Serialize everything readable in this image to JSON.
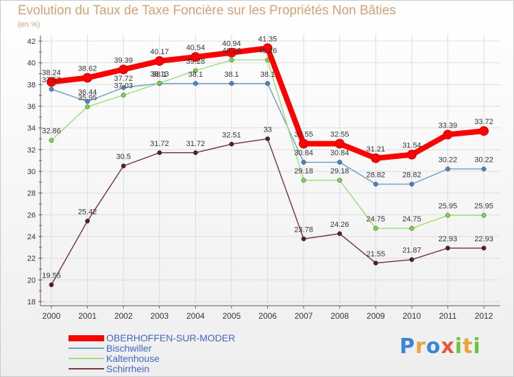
{
  "title": "Evolution du Taux de Taxe Foncière sur les Propriétés Non Bâties",
  "unit_label": "(en %)",
  "logo_text": "Proxiti",
  "colors": {
    "title": "#d2a176",
    "legend_text": "#3d68c6",
    "grid": "#dcdcdc",
    "axis": "#555555"
  },
  "chart_data": {
    "type": "line",
    "title": "Evolution du Taux de Taxe Foncière sur les Propriétés Non Bâties",
    "ylabel": "(en %)",
    "xlabel": "",
    "ylim": [
      18,
      42
    ],
    "yticks": [
      18,
      20,
      22,
      24,
      26,
      28,
      30,
      32,
      34,
      36,
      38,
      40,
      42
    ],
    "categories": [
      "2000",
      "2001",
      "2002",
      "2003",
      "2004",
      "2005",
      "2006",
      "2007",
      "2008",
      "2009",
      "2010",
      "2011",
      "2012"
    ],
    "legend_position": "bottom-left",
    "series": [
      {
        "name": "OBERHOFFEN-SUR-MODER",
        "color": "#ff0000",
        "marker_color": "#ff0000",
        "emphasis": true,
        "values": [
          38.24,
          38.62,
          39.39,
          40.17,
          40.54,
          40.94,
          41.35,
          32.55,
          32.55,
          31.21,
          31.54,
          33.39,
          33.72
        ],
        "labels": [
          "38.24",
          "38.62",
          "39.39",
          "40.17",
          "40.54",
          "40.94",
          "41.35",
          "32.55",
          "32.55",
          "31.21",
          "31.54",
          "33.39",
          "33.72"
        ]
      },
      {
        "name": "Bischwiller",
        "color": "#6fa0c6",
        "marker_color": "#4a86c4",
        "emphasis": false,
        "values": [
          37.57,
          36.44,
          37.72,
          38.1,
          38.1,
          38.1,
          38.1,
          30.84,
          30.84,
          28.82,
          28.82,
          30.22,
          30.22
        ],
        "labels": [
          "37.57",
          "36.44",
          "37.72",
          "38.1",
          "38.1",
          "38.1",
          "38.1",
          "30.84",
          "30.84",
          "28.82",
          "28.82",
          "30.22",
          "30.22"
        ]
      },
      {
        "name": "Kaltenhouse",
        "color": "#9be07a",
        "marker_color": "#7cd44a",
        "emphasis": false,
        "values": [
          32.86,
          35.95,
          37.03,
          38.13,
          39.28,
          40.26,
          40.26,
          29.18,
          29.18,
          24.75,
          24.75,
          25.95,
          25.95
        ],
        "labels": [
          "32.86",
          "35.95",
          "37.03",
          "38.13",
          "39.28",
          "40.26",
          "40.26",
          "29.18",
          "29.18",
          "24.75",
          "24.75",
          "25.95",
          "25.95"
        ]
      },
      {
        "name": "Schirrhein",
        "color": "#7a3a3a",
        "marker_color": "#5a1e1e",
        "emphasis": false,
        "values": [
          19.55,
          25.42,
          30.5,
          31.72,
          31.72,
          32.51,
          33,
          23.78,
          24.26,
          21.55,
          21.87,
          22.93,
          22.93
        ],
        "labels": [
          "19.55",
          "25.42",
          "30.5",
          "31.72",
          "31.72",
          "32.51",
          "33",
          "23.78",
          "24.26",
          "21.55",
          "21.87",
          "22.93",
          "22.93"
        ]
      }
    ]
  }
}
